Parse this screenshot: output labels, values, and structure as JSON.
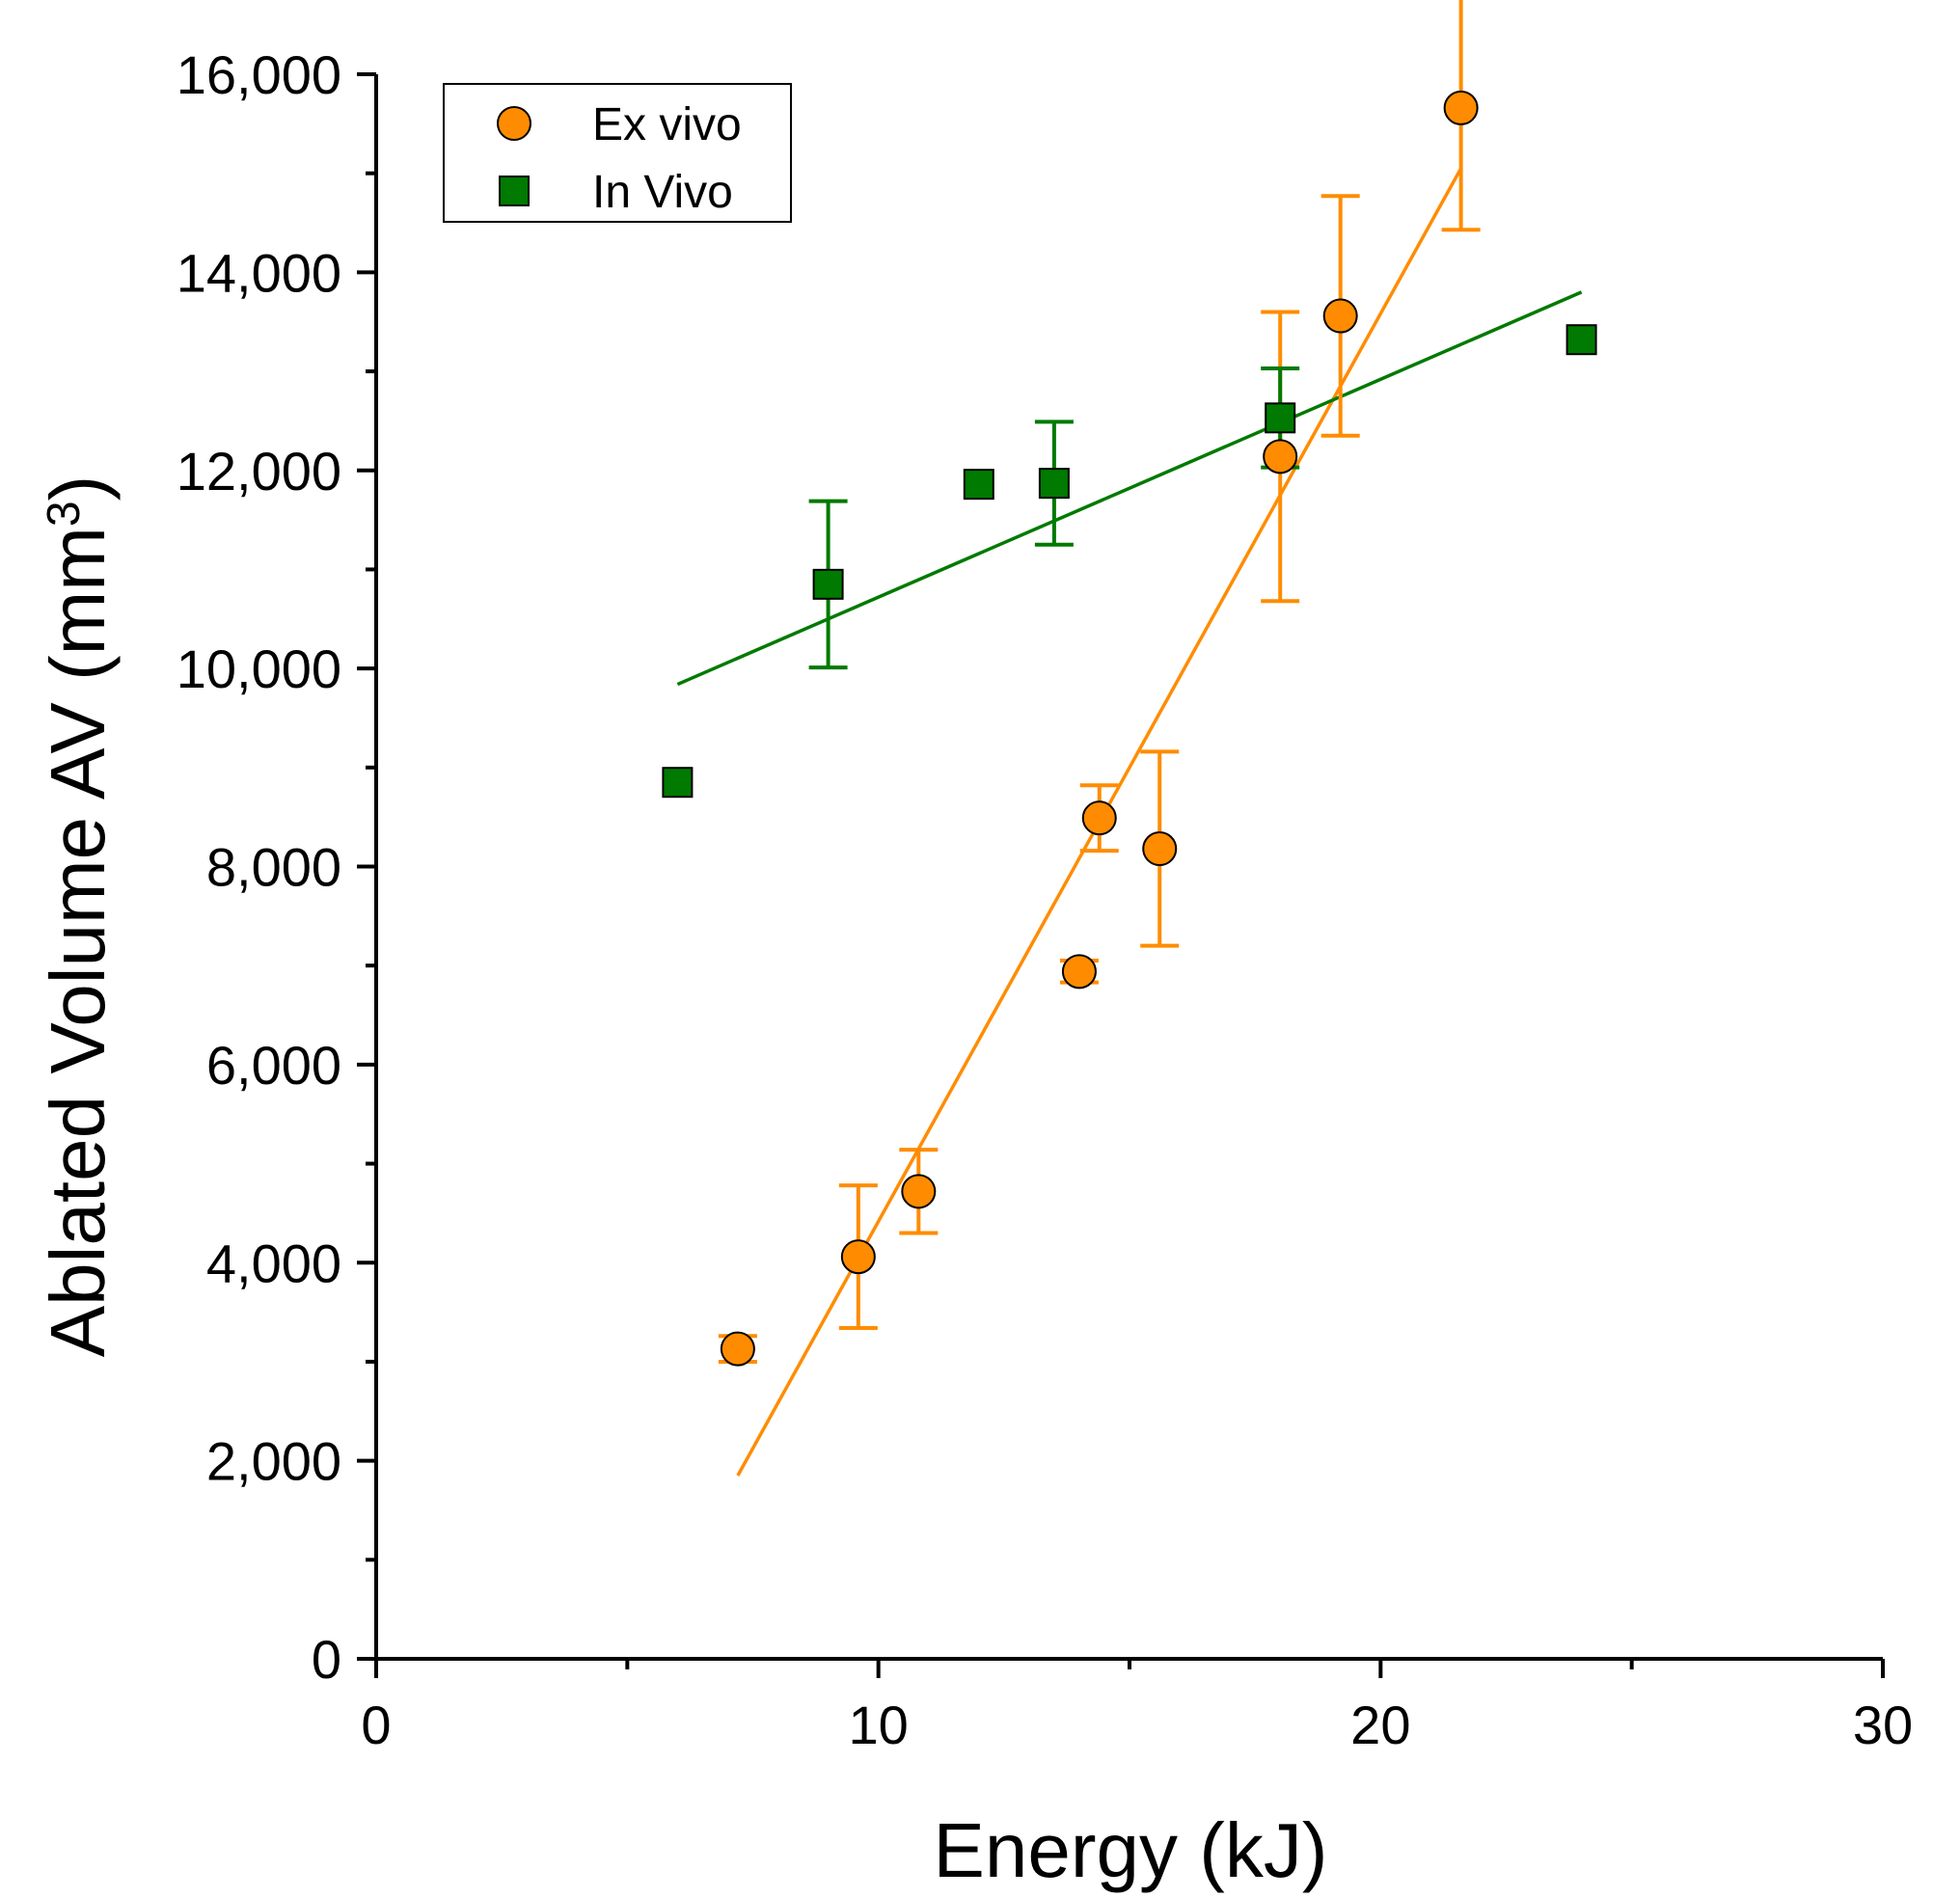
{
  "chart_data": {
    "type": "scatter",
    "xlabel": "Energy (kJ)",
    "ylabel": "Ablated Volume AV (mm³)",
    "ylabel_parts": {
      "main": "Ablated Volume AV (mm",
      "sup": "3",
      "end": ")"
    },
    "xlim": [
      0,
      30
    ],
    "ylim": [
      0,
      16000
    ],
    "x_ticks": [
      0,
      10,
      20,
      30
    ],
    "x_tick_labels": [
      "0",
      "10",
      "20",
      "30"
    ],
    "x_minor_ticks": [
      5,
      15,
      25
    ],
    "y_ticks": [
      0,
      2000,
      4000,
      6000,
      8000,
      10000,
      12000,
      14000,
      16000
    ],
    "y_tick_labels": [
      "0",
      "2,000",
      "4,000",
      "6,000",
      "8,000",
      "10,000",
      "12,000",
      "14,000",
      "16,000"
    ],
    "y_minor_ticks": [
      1000,
      3000,
      5000,
      7000,
      9000,
      11000,
      13000,
      15000
    ],
    "legend_position": "top-left",
    "series": [
      {
        "name": "Ex vivo",
        "marker": "circle",
        "color": "#FF8C00",
        "points": [
          {
            "x": 7.2,
            "y": 3130,
            "err": 130
          },
          {
            "x": 9.6,
            "y": 4060,
            "err": 720
          },
          {
            "x": 10.8,
            "y": 4720,
            "err": 420
          },
          {
            "x": 14.0,
            "y": 6940,
            "err": 110
          },
          {
            "x": 14.4,
            "y": 8490,
            "err": 330
          },
          {
            "x": 15.6,
            "y": 8180,
            "err": 980
          },
          {
            "x": 18.0,
            "y": 12140,
            "err": 1460
          },
          {
            "x": 19.2,
            "y": 13560,
            "err": 1210
          },
          {
            "x": 21.6,
            "y": 15660,
            "err": 1230
          }
        ],
        "fit": {
          "x": [
            7.2,
            21.6
          ],
          "y": [
            1850,
            15050
          ]
        }
      },
      {
        "name": "In Vivo",
        "marker": "square",
        "color": "#007A00",
        "points": [
          {
            "x": 6.0,
            "y": 8850,
            "err": 0
          },
          {
            "x": 9.0,
            "y": 10850,
            "err": 840
          },
          {
            "x": 12.0,
            "y": 11860,
            "err": 0
          },
          {
            "x": 13.5,
            "y": 11870,
            "err": 620
          },
          {
            "x": 18.0,
            "y": 12530,
            "err": 500
          },
          {
            "x": 24.0,
            "y": 13320,
            "err": 0
          }
        ],
        "fit": {
          "x": [
            6.0,
            24.0
          ],
          "y": [
            9840,
            13800
          ]
        }
      }
    ]
  }
}
